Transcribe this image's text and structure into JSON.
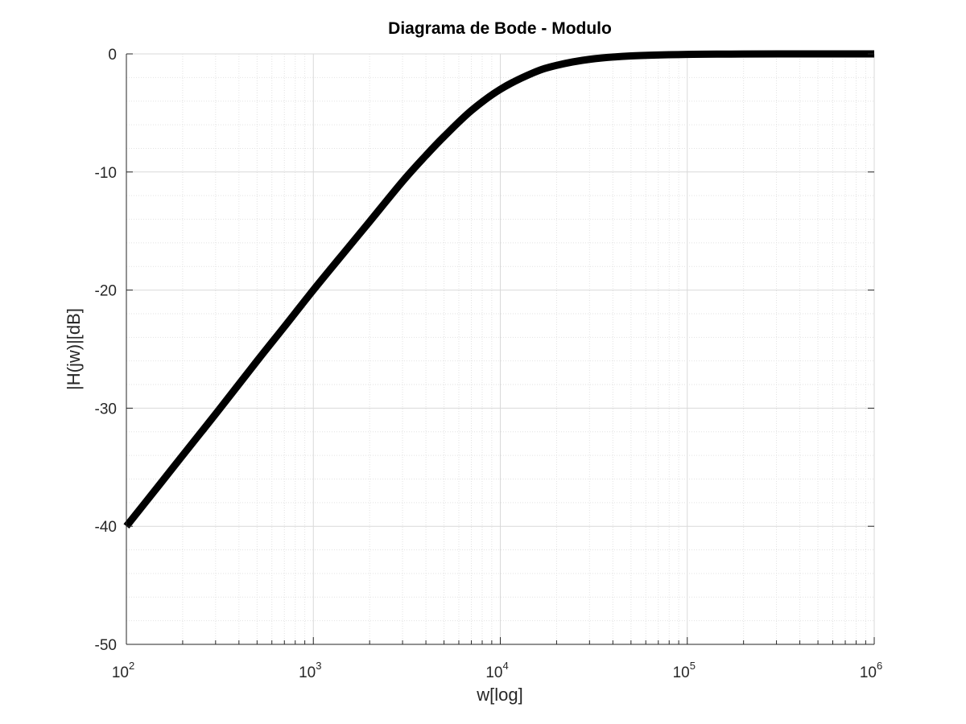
{
  "chart_data": {
    "type": "line",
    "title": "Diagrama de Bode - Modulo",
    "xlabel": "w[log]",
    "ylabel": "|H(jw)|[dB]",
    "xscale": "log",
    "xlim": [
      100,
      1000000
    ],
    "ylim": [
      -50,
      0
    ],
    "grid": true,
    "x_ticks": [
      {
        "base": "10",
        "exp": "2"
      },
      {
        "base": "10",
        "exp": "3"
      },
      {
        "base": "10",
        "exp": "4"
      },
      {
        "base": "10",
        "exp": "5"
      },
      {
        "base": "10",
        "exp": "6"
      }
    ],
    "y_ticks": [
      "0",
      "-10",
      "-20",
      "-30",
      "-40",
      "-50"
    ],
    "series": [
      {
        "color": "#000000",
        "x": [
          100,
          150,
          200,
          300,
          500,
          700,
          1000,
          1500,
          2000,
          3000,
          4000,
          5000,
          7000,
          10000,
          15000,
          20000,
          30000,
          50000,
          100000,
          200000,
          500000,
          1000000
        ],
        "y": [
          -40.0,
          -36.5,
          -34.0,
          -30.5,
          -26.0,
          -23.1,
          -20.0,
          -16.6,
          -14.2,
          -10.8,
          -8.6,
          -7.0,
          -4.8,
          -3.0,
          -1.6,
          -0.97,
          -0.46,
          -0.17,
          -0.04,
          -0.01,
          0.0,
          0.0
        ]
      }
    ]
  }
}
